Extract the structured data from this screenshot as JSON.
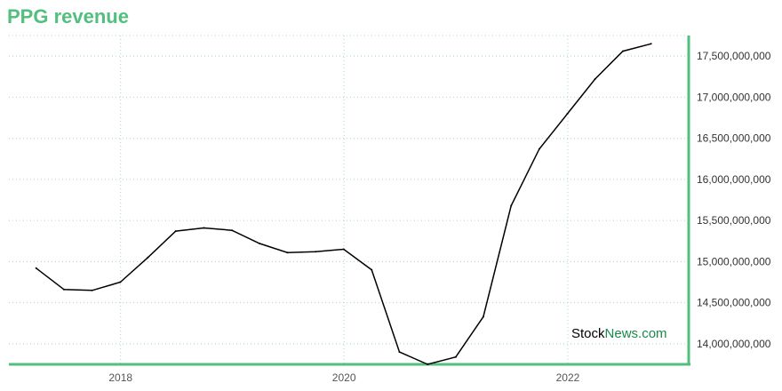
{
  "chart_data": {
    "type": "line",
    "title": "PPG revenue",
    "xlabel": "",
    "ylabel": "",
    "x_tick_labels": [
      "2018",
      "2020",
      "2022"
    ],
    "y_tick_labels": [
      "14,000,000,000",
      "14,500,000,000",
      "15,000,000,000",
      "15,500,000,000",
      "16,000,000,000",
      "16,500,000,000",
      "17,000,000,000",
      "17,500,000,000"
    ],
    "ylim": [
      13750000000,
      17750000000
    ],
    "y_ticks": [
      14000000000,
      14500000000,
      15000000000,
      15500000000,
      16000000000,
      16500000000,
      17000000000,
      17500000000
    ],
    "grid": true,
    "series": [
      {
        "x": [
          "2017-03-31",
          "2017-06-30",
          "2017-09-30",
          "2017-12-31",
          "2018-03-31",
          "2018-06-30",
          "2018-09-30",
          "2018-12-31",
          "2019-03-31",
          "2019-06-30",
          "2019-09-30",
          "2019-12-31",
          "2020-03-31",
          "2020-06-30",
          "2020-09-30",
          "2020-12-31",
          "2021-03-31",
          "2021-06-30",
          "2021-09-30",
          "2021-12-31",
          "2022-03-31",
          "2022-06-30",
          "2022-09-30"
        ],
        "values": [
          14920000000,
          14660000000,
          14650000000,
          14750000000,
          15050000000,
          15370000000,
          15410000000,
          15380000000,
          15220000000,
          15110000000,
          15120000000,
          15150000000,
          14900000000,
          13900000000,
          13750000000,
          13840000000,
          14330000000,
          15680000000,
          16370000000,
          16800000000,
          17220000000,
          17560000000,
          17650000000
        ]
      }
    ],
    "colors": {
      "line": "#000000",
      "accent": "#52bf7e",
      "grid": "#a9d8c8"
    }
  },
  "watermark": {
    "part1": "Stock",
    "part2": "News.com"
  }
}
